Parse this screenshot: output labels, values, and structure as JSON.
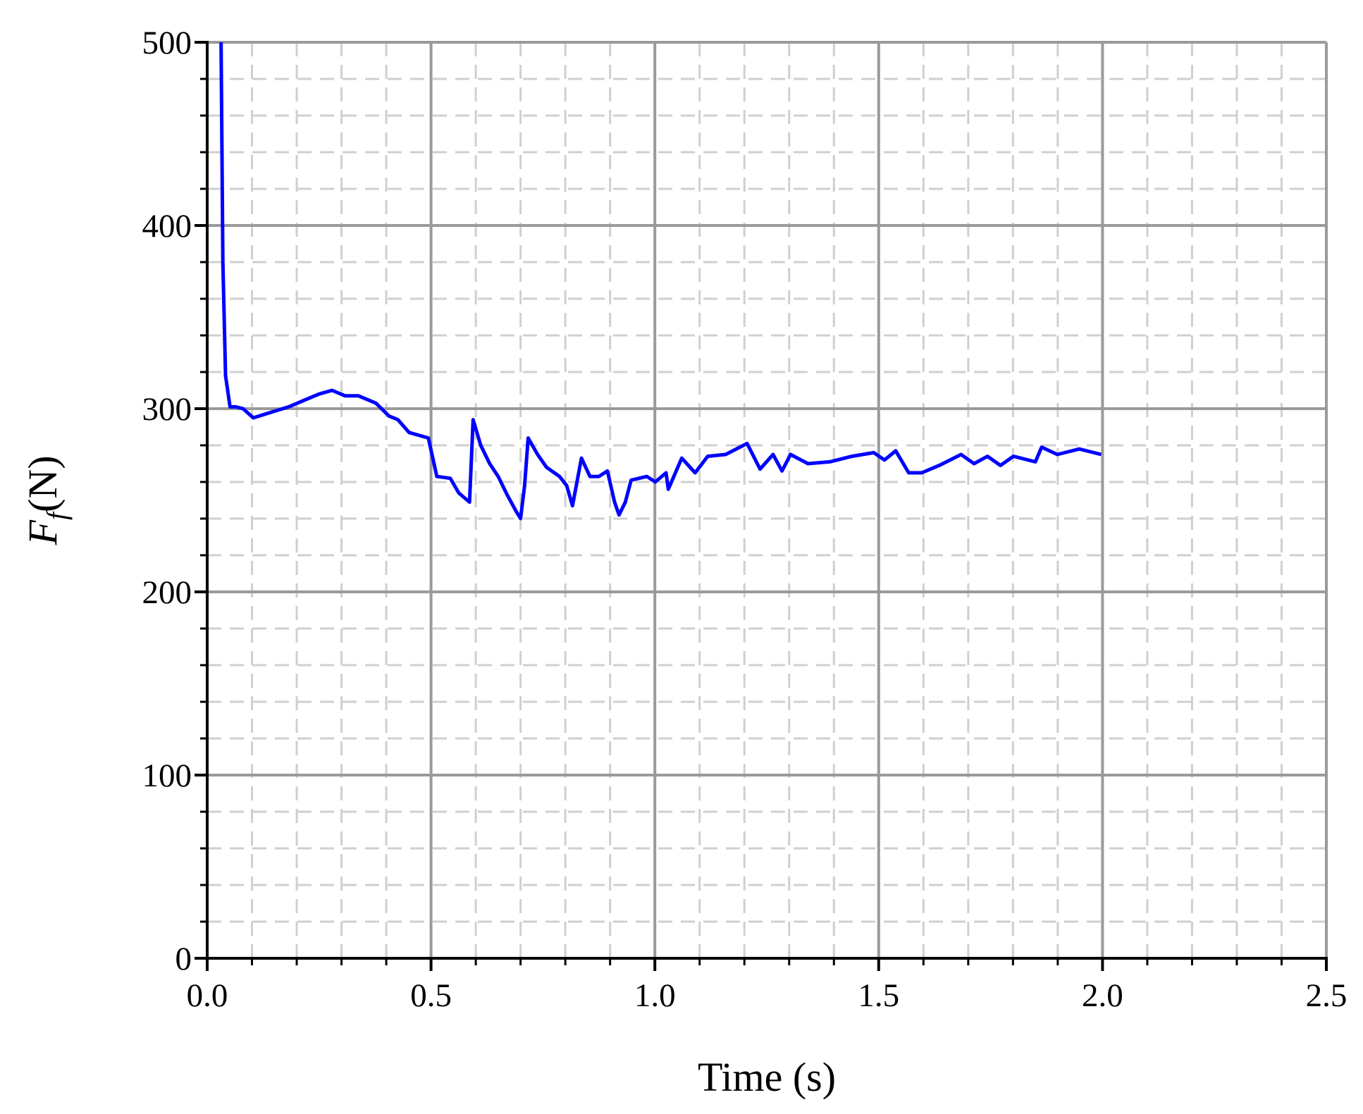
{
  "chart_data": {
    "type": "line",
    "xlabel": "Time (s)",
    "ylabel": {
      "main": "F",
      "sub": "f",
      "unit": "(N)"
    },
    "xlim": [
      0,
      2.5
    ],
    "xticks": [
      {
        "value": 0,
        "label": "0.0"
      },
      0.5,
      {
        "value": 1,
        "label": "1.0"
      },
      1.5,
      {
        "value": 2,
        "label": "2.0"
      },
      2.5
    ],
    "ylim": [
      0,
      500
    ],
    "yticks": [
      0,
      100,
      200,
      300,
      400,
      500
    ],
    "grid": true,
    "minor_grid": true,
    "minor_ticks": 4,
    "series": [
      {
        "color": "#0000ff",
        "x": [
          0.031,
          0.035,
          0.041,
          0.051,
          0.064,
          0.08,
          0.103,
          0.142,
          0.182,
          0.211,
          0.25,
          0.279,
          0.308,
          0.338,
          0.377,
          0.406,
          0.426,
          0.451,
          0.494,
          0.513,
          0.543,
          0.562,
          0.586,
          0.594,
          0.611,
          0.631,
          0.65,
          0.67,
          0.69,
          0.7,
          0.709,
          0.717,
          0.738,
          0.758,
          0.787,
          0.803,
          0.816,
          0.836,
          0.855,
          0.875,
          0.894,
          0.91,
          0.92,
          0.934,
          0.947,
          0.982,
          1.001,
          1.025,
          1.03,
          1.06,
          1.09,
          1.118,
          1.158,
          1.206,
          1.235,
          1.264,
          1.284,
          1.303,
          1.342,
          1.391,
          1.44,
          1.489,
          1.513,
          1.538,
          1.567,
          1.596,
          1.635,
          1.684,
          1.713,
          1.743,
          1.772,
          1.801,
          1.85,
          1.864,
          1.899,
          1.948,
          1.997
        ],
        "values": [
          500,
          380,
          318,
          301,
          301,
          300,
          295,
          298,
          301,
          304,
          308,
          310,
          307,
          307,
          303,
          296,
          294,
          287,
          284,
          263,
          262,
          254,
          249,
          294,
          280,
          270,
          263,
          253,
          244,
          240,
          258,
          284,
          275,
          268,
          263,
          258,
          247,
          273,
          263,
          263,
          266,
          249,
          242,
          249,
          261,
          263,
          260,
          265,
          256,
          273,
          265,
          274,
          275,
          281,
          267,
          275,
          266,
          275,
          270,
          271,
          274,
          276,
          272,
          277,
          265,
          265,
          269,
          275,
          270,
          274,
          269,
          274,
          271,
          279,
          275,
          278,
          275
        ]
      }
    ]
  }
}
